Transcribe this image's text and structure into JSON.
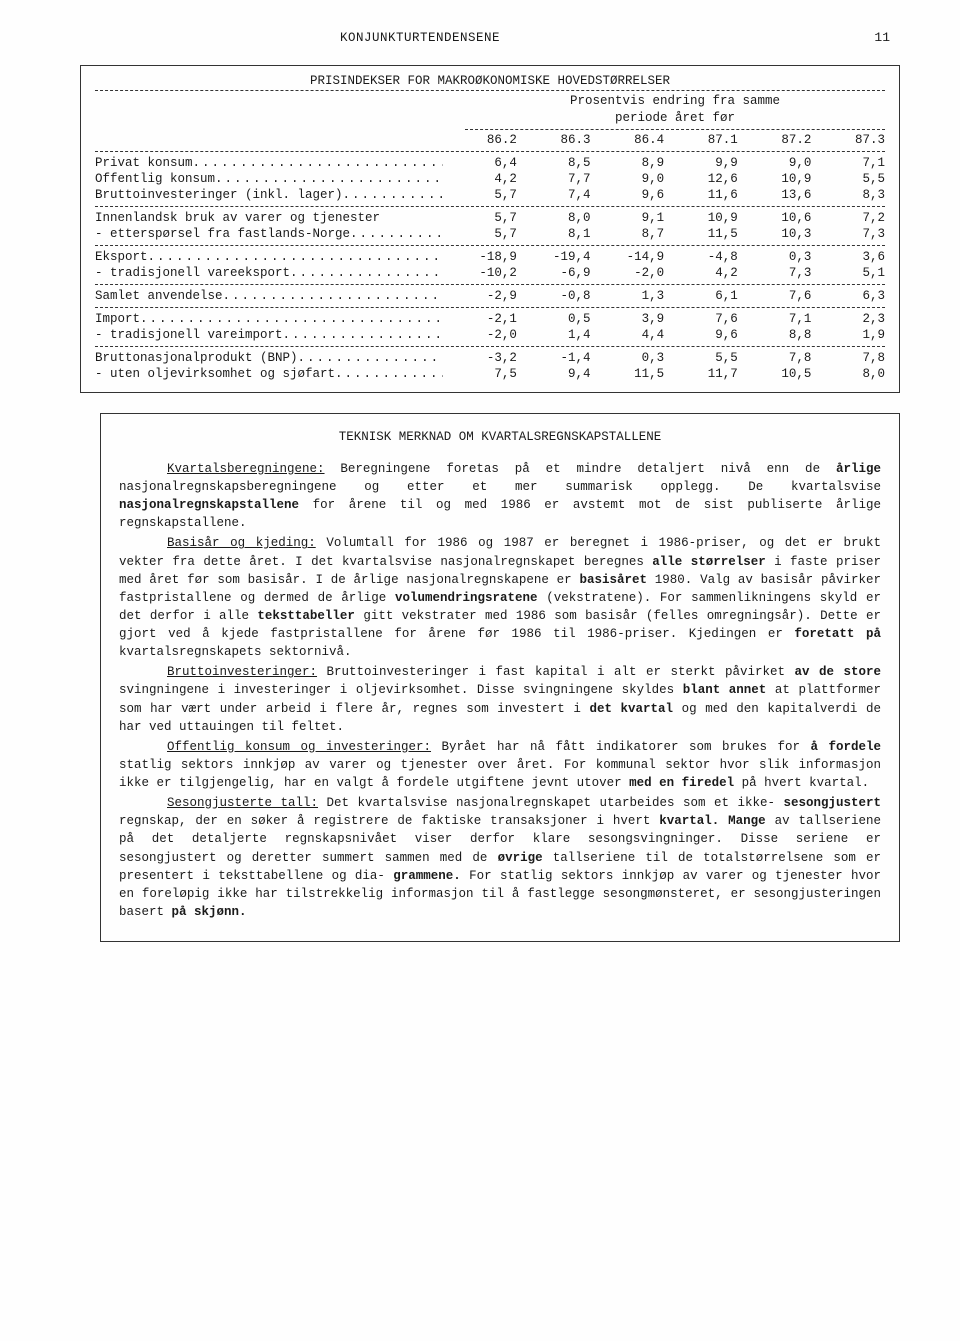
{
  "header": {
    "running_title": "KONJUNKTURTENDENSENE",
    "page_number": "11"
  },
  "table": {
    "title": "PRISINDEKSER FOR MAKROØKONOMISKE HOVEDSTØRRELSER",
    "subheader_line1": "Prosentvis endring fra samme",
    "subheader_line2": "periode året før",
    "columns": [
      "86.2",
      "86.3",
      "86.4",
      "87.1",
      "87.2",
      "87.3"
    ],
    "groups": [
      {
        "rows": [
          {
            "label": "Privat konsum",
            "bold": true,
            "dots": true,
            "vals": [
              "6,4",
              "8,5",
              "8,9",
              "9,9",
              "9,0",
              "7,1"
            ]
          },
          {
            "label": "Offentlig konsum",
            "bold": true,
            "dots": true,
            "vals": [
              "4,2",
              "7,7",
              "9,0",
              "12,6",
              "10,9",
              "5,5"
            ]
          },
          {
            "label": "Bruttoinvesteringer (inkl. lager)",
            "bold": true,
            "dots": true,
            "vals": [
              "5,7",
              "7,4",
              "9,6",
              "11,6",
              "13,6",
              "8,3"
            ]
          }
        ]
      },
      {
        "rows": [
          {
            "label": "Innenlandsk bruk av varer og tjenester",
            "bold": true,
            "dots": false,
            "vals": [
              "5,7",
              "8,0",
              "9,1",
              "10,9",
              "10,6",
              "7,2"
            ]
          },
          {
            "label": "- etterspørsel fra fastlands-Norge",
            "bold": false,
            "dots": true,
            "vals": [
              "5,7",
              "8,1",
              "8,7",
              "11,5",
              "10,3",
              "7,3"
            ]
          }
        ]
      },
      {
        "rows": [
          {
            "label": "Eksport",
            "bold": true,
            "dots": true,
            "vals": [
              "-18,9",
              "-19,4",
              "-14,9",
              "-4,8",
              "0,3",
              "3,6"
            ]
          },
          {
            "label": "- tradisjonell vareeksport",
            "bold": false,
            "dots": true,
            "vals": [
              "-10,2",
              "-6,9",
              "-2,0",
              "4,2",
              "7,3",
              "5,1"
            ]
          }
        ]
      },
      {
        "rows": [
          {
            "label": "Samlet anvendelse",
            "bold": true,
            "dots": true,
            "vals": [
              "-2,9",
              "-0,8",
              "1,3",
              "6,1",
              "7,6",
              "6,3"
            ]
          }
        ]
      },
      {
        "rows": [
          {
            "label": "Import",
            "bold": true,
            "dots": true,
            "vals": [
              "-2,1",
              "0,5",
              "3,9",
              "7,6",
              "7,1",
              "2,3"
            ]
          },
          {
            "label": "- tradisjonell vareimport",
            "bold": false,
            "dots": true,
            "vals": [
              "-2,0",
              "1,4",
              "4,4",
              "9,6",
              "8,8",
              "1,9"
            ]
          }
        ]
      },
      {
        "rows": [
          {
            "label": "Bruttonasjonalprodukt (BNP)",
            "bold": true,
            "dots": true,
            "vals": [
              "-3,2",
              "-1,4",
              "0,3",
              "5,5",
              "7,8",
              "7,8"
            ]
          },
          {
            "label": "- uten oljevirksomhet og sjøfart",
            "bold": false,
            "dots": true,
            "vals": [
              "7,5",
              "9,4",
              "11,5",
              "11,7",
              "10,5",
              "8,0"
            ]
          }
        ]
      }
    ]
  },
  "notes": {
    "title": "TEKNISK MERKNAD OM KVARTALSREGNSKAPSTALLENE",
    "p1_lead": "Kvartalsberegningene:",
    "p1": "Beregningene foretas på et mindre detaljert nivå enn de",
    "p1b_bold": "årlige",
    "p1b": "nasjonalregnskapsberegningene og etter et mer summarisk opplegg. De kvartalsvise",
    "p1c_bold": "nasjonalregnskapstallene",
    "p1c": "for årene til og med 1986 er avstemt mot de sist publiserte årlige regnskapstallene.",
    "p2_lead": "Basisår og kjeding:",
    "p2": "Volumtall for 1986 og 1987 er beregnet i 1986-priser, og det er brukt vekter fra dette året. I det kvartalsvise nasjonalregnskapet beregnes",
    "p2_bold1": "alle størrelser",
    "p2b": "i faste priser med året før som basisår. I de årlige nasjonalregnskapene er",
    "p2_bold2": "basisåret",
    "p2c": "1980. Valg av basisår påvirker fastpristallene og dermed de årlige",
    "p2_bold3": "volumendringsratene",
    "p2d": "(vekstratene). For sammenlikningens skyld er det derfor i alle",
    "p2_bold4": "teksttabeller",
    "p2e": "gitt vekstrater med 1986 som basisår (felles omregningsår). Dette er gjort ved å kjede fastpristallene for årene før 1986 til 1986-priser. Kjedingen er",
    "p2_bold5": "foretatt på",
    "p2f": "kvartalsregnskapets sektornivå.",
    "p3_lead": "Bruttoinvesteringer:",
    "p3": "Bruttoinvesteringer i fast kapital i alt er sterkt påvirket",
    "p3_bold1": "av de store",
    "p3b": "svingningene i investeringer i oljevirksomhet. Disse svingningene skyldes",
    "p3_bold2": "blant annet",
    "p3c": "at plattformer som har vært under arbeid i flere år, regnes som investert i",
    "p3_bold3": "det kvartal",
    "p3d": "og med den kapitalverdi de har ved uttauingen til feltet.",
    "p4_lead": "Offentlig konsum og investeringer:",
    "p4": "Byrået har nå fått indikatorer som brukes for",
    "p4_bold1": "å fordele",
    "p4b": "statlig sektors innkjøp av varer og tjenester over året. For kommunal sektor hvor slik informasjon ikke er tilgjengelig, har en valgt å fordele utgiftene jevnt utover",
    "p4_bold2": "med en firedel",
    "p4c": "på hvert kvartal.",
    "p5_lead": "Sesongjusterte tall:",
    "p5": "Det kvartalsvise nasjonalregnskapet utarbeides som et ikke-",
    "p5_bold1": "sesongjustert",
    "p5b": "regnskap, der en søker å registrere de faktiske transaksjoner i hvert",
    "p5_bold2": "kvartal. Mange",
    "p5c": "av tallseriene på det detaljerte regnskapsnivået viser derfor klare sesongsvingninger. Disse seriene er sesongjustert og deretter summert sammen med de",
    "p5_bold3": "øvrige",
    "p5d": "tallseriene til de totalstørrelsene som er presentert i teksttabellene og dia-",
    "p5_bold4": "grammene.",
    "p5e": "For statlig sektors innkjøp av varer og tjenester hvor en foreløpig ikke har tilstrekkelig informasjon til å fastlegge sesongmønsteret, er sesongjusteringen basert",
    "p5_bold5": "på skjønn."
  }
}
